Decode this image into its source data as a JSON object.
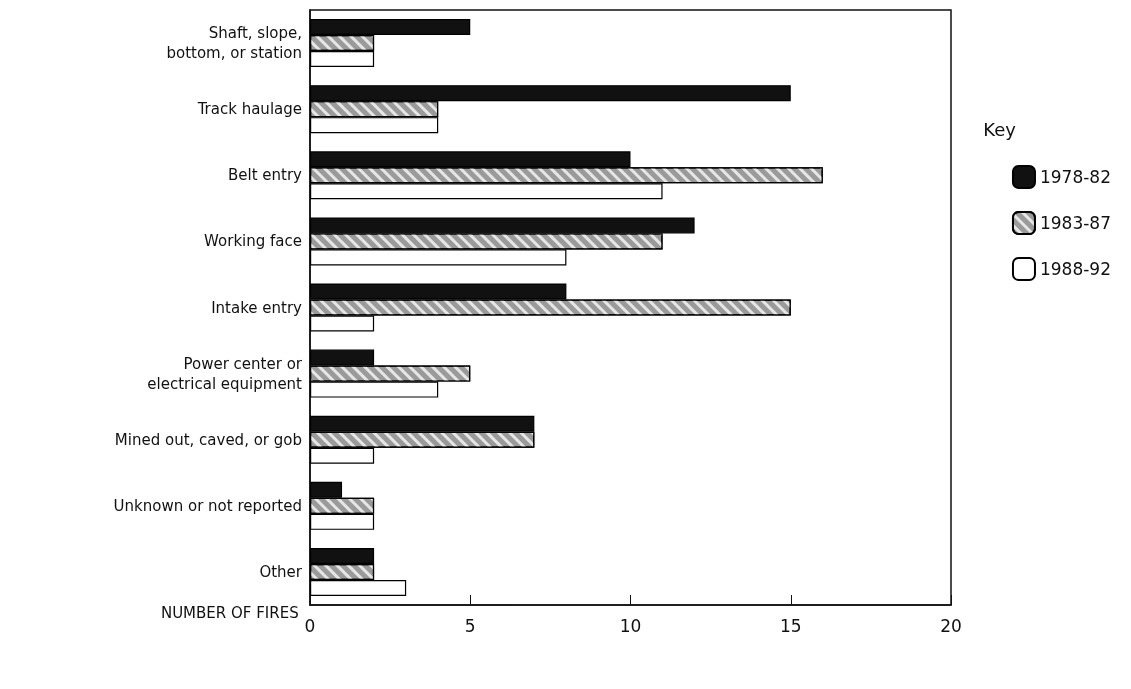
{
  "chart_data": {
    "type": "bar",
    "orientation": "horizontal",
    "xlabel": "NUMBER OF FIRES",
    "legend_title": "Key",
    "legend": "right",
    "categories": [
      "Shaft, slope,\nbottom, or station",
      "Track haulage",
      "Belt entry",
      "Working face",
      "Intake entry",
      "Power center or\nelectrical equipment",
      "Mined out, caved, or gob",
      "Unknown or not reported",
      "Other"
    ],
    "series": [
      {
        "name": "1978-82",
        "color": "#111111",
        "values": [
          5,
          15,
          10,
          12,
          8,
          2,
          7,
          1,
          2
        ]
      },
      {
        "name": "1983-87",
        "color": "#9a9a9a",
        "values": [
          2,
          4,
          16,
          11,
          15,
          5,
          7,
          2,
          2
        ]
      },
      {
        "name": "1988-92",
        "color": "#ffffff",
        "values": [
          2,
          4,
          11,
          8,
          2,
          4,
          2,
          2,
          3
        ]
      }
    ],
    "xlim": [
      0,
      20
    ],
    "xticks": [
      0,
      5,
      10,
      15,
      20
    ],
    "grid": false
  }
}
